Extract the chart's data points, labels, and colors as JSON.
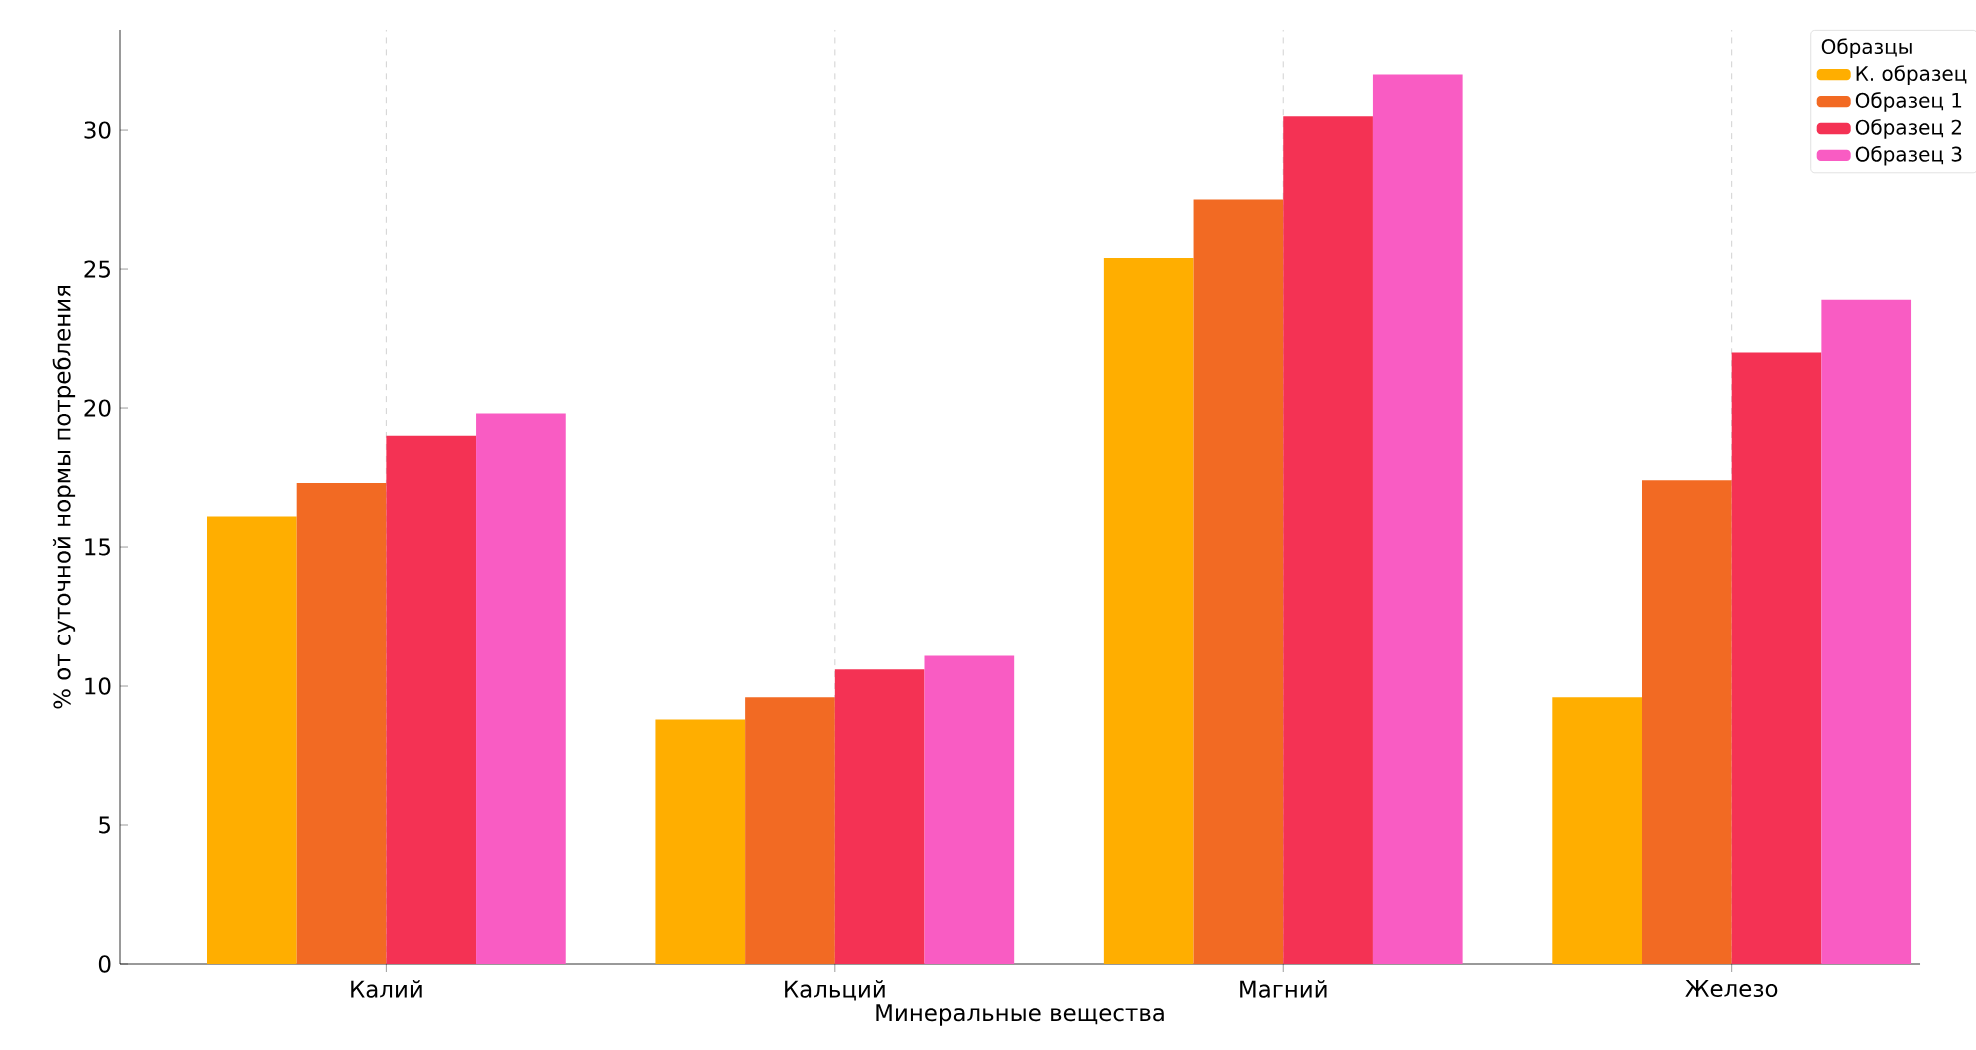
{
  "chart_data": {
    "type": "bar",
    "xlabel": "Минеральные вещества",
    "ylabel": "% от суточной нормы потребления",
    "legend_title": "Образцы",
    "categories": [
      "Калий",
      "Кальций",
      "Магний",
      "Железо"
    ],
    "series": [
      {
        "name": "К. образец",
        "color": "#ffae00",
        "values": [
          16.1,
          8.8,
          25.4,
          9.6
        ]
      },
      {
        "name": "Образец 1",
        "color": "#f26a23",
        "values": [
          17.3,
          9.6,
          27.5,
          17.4
        ]
      },
      {
        "name": "Образец 2",
        "color": "#f43254",
        "values": [
          19.0,
          10.6,
          30.5,
          22.0
        ]
      },
      {
        "name": "Образец 3",
        "color": "#f95cc3",
        "values": [
          19.8,
          11.1,
          32.0,
          23.9
        ]
      }
    ],
    "ylim": [
      0,
      33.6
    ],
    "yticks": [
      0,
      5,
      10,
      15,
      20,
      25,
      30
    ],
    "grid": "x",
    "legend": "top right"
  }
}
